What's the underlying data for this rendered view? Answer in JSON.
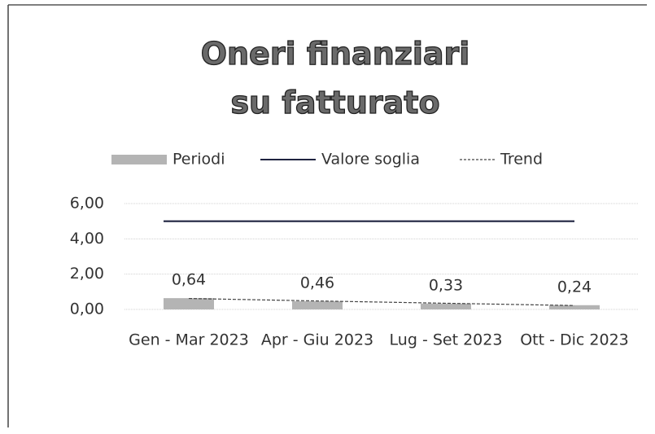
{
  "chart_data": {
    "type": "bar",
    "title": "Oneri finanziari su fatturato",
    "categories": [
      "Gen - Mar 2023",
      "Apr - Giu 2023",
      "Lug - Set 2023",
      "Ott - Dic 2023"
    ],
    "series": [
      {
        "name": "Periodi",
        "type": "bar",
        "color": "#b4b4b4",
        "values": [
          0.64,
          0.46,
          0.33,
          0.24
        ],
        "value_labels": [
          "0,64",
          "0,46",
          "0,33",
          "0,24"
        ]
      },
      {
        "name": "Valore soglia",
        "type": "line",
        "color": "#1f2340",
        "values": [
          5,
          5,
          5,
          5
        ]
      },
      {
        "name": "Trend",
        "type": "line",
        "style": "dashed",
        "color": "#444444",
        "values": [
          0.62,
          0.48,
          0.35,
          0.22
        ]
      }
    ],
    "ylim": [
      0,
      6
    ],
    "yticks": [
      {
        "value": 0,
        "label": "0,00"
      },
      {
        "value": 2,
        "label": "2,00"
      },
      {
        "value": 4,
        "label": "4,00"
      },
      {
        "value": 6,
        "label": "6,00"
      }
    ],
    "grid": true,
    "legend": "top"
  }
}
